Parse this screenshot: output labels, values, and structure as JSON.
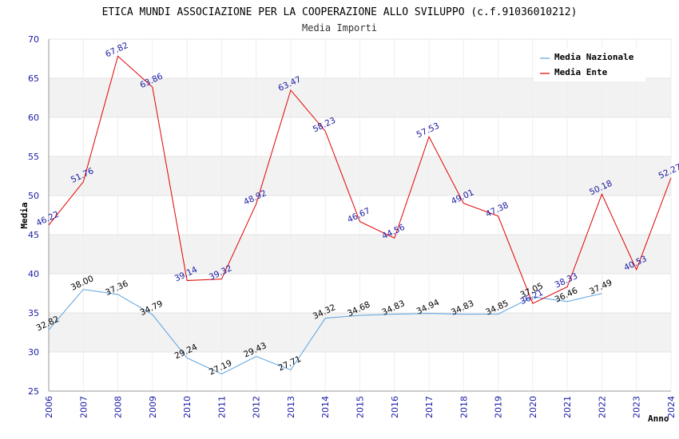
{
  "chart_data": {
    "type": "line",
    "title": "ETICA MUNDI ASSOCIAZIONE PER LA COOPERAZIONE ALLO SVILUPPO (c.f.91036010212)",
    "subtitle": "Media Importi",
    "xlabel": "Anno",
    "ylabel": "Media",
    "ylim": [
      25,
      70
    ],
    "yticks": [
      25,
      30,
      35,
      40,
      45,
      50,
      55,
      60,
      65,
      70
    ],
    "x": [
      "2006",
      "2007",
      "2008",
      "2009",
      "2010",
      "2011",
      "2012",
      "2013",
      "2014",
      "2015",
      "2016",
      "2017",
      "2018",
      "2019",
      "2020",
      "2021",
      "2022",
      "2023",
      "2024"
    ],
    "series": [
      {
        "name": "Media Nazionale",
        "color": "#5aa2e0",
        "values": [
          32.82,
          38.0,
          37.36,
          34.79,
          29.24,
          27.19,
          29.43,
          27.71,
          34.32,
          34.68,
          34.83,
          34.94,
          34.83,
          34.85,
          37.05,
          36.46,
          37.49,
          null,
          null
        ],
        "labels": [
          "32.82",
          "38.00",
          "37.36",
          "34.79",
          "29.24",
          "27.19",
          "29.43",
          "27.71",
          "34.32",
          "34.68",
          "34.83",
          "34.94",
          "34.83",
          "34.85",
          "37.05",
          "36.46",
          "37.49",
          "",
          ""
        ]
      },
      {
        "name": "Media Ente",
        "color": "#e00000",
        "values": [
          46.22,
          51.76,
          67.82,
          63.86,
          39.14,
          39.32,
          48.92,
          63.47,
          58.23,
          46.67,
          44.56,
          57.53,
          49.01,
          47.38,
          36.21,
          38.33,
          50.18,
          40.53,
          52.27
        ],
        "labels": [
          "46.22",
          "51.76",
          "67.82",
          "63.86",
          "39.14",
          "39.32",
          "48.92",
          "63.47",
          "58.23",
          "46.67",
          "44.56",
          "57.53",
          "49.01",
          "47.38",
          "36.21",
          "38.33",
          "50.18",
          "40.53",
          "52.27"
        ]
      }
    ],
    "grid": true,
    "legend": "top-right"
  }
}
